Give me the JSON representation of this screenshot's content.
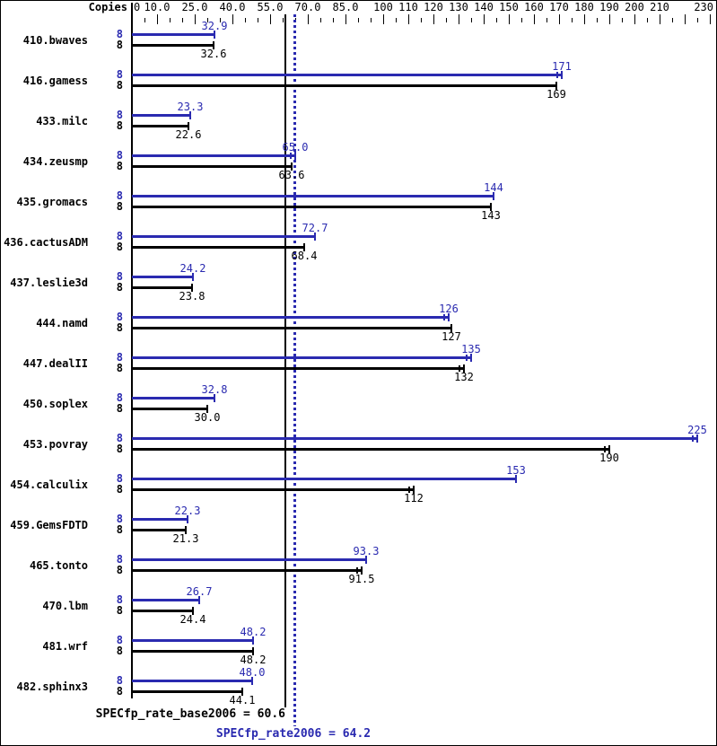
{
  "header": {
    "copies_label": "Copies"
  },
  "colors": {
    "peak_blue": "#2a2ab0",
    "base_black": "#000000",
    "background": "#ffffff"
  },
  "chart_data": {
    "type": "bar",
    "orientation": "horizontal",
    "legend": "none",
    "grid": "off",
    "axis": {
      "min": 0,
      "max": 230,
      "minor_tick_step": 5,
      "unlabeled_major_ticks": [
        220
      ],
      "labeled_ticks": [
        {
          "value": 0,
          "label": "0"
        },
        {
          "value": 10,
          "label": "10.0"
        },
        {
          "value": 25,
          "label": "25.0"
        },
        {
          "value": 40,
          "label": "40.0"
        },
        {
          "value": 55,
          "label": "55.0"
        },
        {
          "value": 70,
          "label": "70.0"
        },
        {
          "value": 85,
          "label": "85.0"
        },
        {
          "value": 100,
          "label": "100"
        },
        {
          "value": 110,
          "label": "110"
        },
        {
          "value": 120,
          "label": "120"
        },
        {
          "value": 130,
          "label": "130"
        },
        {
          "value": 140,
          "label": "140"
        },
        {
          "value": 150,
          "label": "150"
        },
        {
          "value": 160,
          "label": "160"
        },
        {
          "value": 170,
          "label": "170"
        },
        {
          "value": 180,
          "label": "180"
        },
        {
          "value": 190,
          "label": "190"
        },
        {
          "value": 200,
          "label": "200"
        },
        {
          "value": 210,
          "label": "210"
        },
        {
          "value": 230,
          "label": "230"
        }
      ]
    },
    "series_names": [
      "peak",
      "base"
    ],
    "benchmarks": [
      {
        "name": "410.bwaves",
        "copies_peak": "8",
        "copies_base": "8",
        "peak": 32.9,
        "peak_label": "32.9",
        "peak_err": false,
        "base": 32.6,
        "base_label": "32.6",
        "base_err": false
      },
      {
        "name": "416.gamess",
        "copies_peak": "8",
        "copies_base": "8",
        "peak": 171,
        "peak_label": "171",
        "peak_err": true,
        "base": 169,
        "base_label": "169",
        "base_err": false
      },
      {
        "name": "433.milc",
        "copies_peak": "8",
        "copies_base": "8",
        "peak": 23.3,
        "peak_label": "23.3",
        "peak_err": false,
        "base": 22.6,
        "base_label": "22.6",
        "base_err": false
      },
      {
        "name": "434.zeusmp",
        "copies_peak": "8",
        "copies_base": "8",
        "peak": 65.0,
        "peak_label": "65.0",
        "peak_err": true,
        "base": 63.6,
        "base_label": "63.6",
        "base_err": false
      },
      {
        "name": "435.gromacs",
        "copies_peak": "8",
        "copies_base": "8",
        "peak": 144,
        "peak_label": "144",
        "peak_err": false,
        "base": 143,
        "base_label": "143",
        "base_err": false
      },
      {
        "name": "436.cactusADM",
        "copies_peak": "8",
        "copies_base": "8",
        "peak": 72.7,
        "peak_label": "72.7",
        "peak_err": false,
        "base": 68.4,
        "base_label": "68.4",
        "base_err": false
      },
      {
        "name": "437.leslie3d",
        "copies_peak": "8",
        "copies_base": "8",
        "peak": 24.2,
        "peak_label": "24.2",
        "peak_err": false,
        "base": 23.8,
        "base_label": "23.8",
        "base_err": false
      },
      {
        "name": "444.namd",
        "copies_peak": "8",
        "copies_base": "8",
        "peak": 126,
        "peak_label": "126",
        "peak_err": true,
        "base": 127,
        "base_label": "127",
        "base_err": false
      },
      {
        "name": "447.dealII",
        "copies_peak": "8",
        "copies_base": "8",
        "peak": 135,
        "peak_label": "135",
        "peak_err": true,
        "base": 132,
        "base_label": "132",
        "base_err": true
      },
      {
        "name": "450.soplex",
        "copies_peak": "8",
        "copies_base": "8",
        "peak": 32.8,
        "peak_label": "32.8",
        "peak_err": false,
        "base": 30.0,
        "base_label": "30.0",
        "base_err": false
      },
      {
        "name": "453.povray",
        "copies_peak": "8",
        "copies_base": "8",
        "peak": 225,
        "peak_label": "225",
        "peak_err": true,
        "base": 190,
        "base_label": "190",
        "base_err": true
      },
      {
        "name": "454.calculix",
        "copies_peak": "8",
        "copies_base": "8",
        "peak": 153,
        "peak_label": "153",
        "peak_err": false,
        "base": 112,
        "base_label": "112",
        "base_err": true
      },
      {
        "name": "459.GemsFDTD",
        "copies_peak": "8",
        "copies_base": "8",
        "peak": 22.3,
        "peak_label": "22.3",
        "peak_err": false,
        "base": 21.3,
        "base_label": "21.3",
        "base_err": false
      },
      {
        "name": "465.tonto",
        "copies_peak": "8",
        "copies_base": "8",
        "peak": 93.3,
        "peak_label": "93.3",
        "peak_err": false,
        "base": 91.5,
        "base_label": "91.5",
        "base_err": true
      },
      {
        "name": "470.lbm",
        "copies_peak": "8",
        "copies_base": "8",
        "peak": 26.7,
        "peak_label": "26.7",
        "peak_err": false,
        "base": 24.4,
        "base_label": "24.4",
        "base_err": false
      },
      {
        "name": "481.wrf",
        "copies_peak": "8",
        "copies_base": "8",
        "peak": 48.2,
        "peak_label": "48.2",
        "peak_err": false,
        "base": 48.2,
        "base_label": "48.2",
        "base_err": false
      },
      {
        "name": "482.sphinx3",
        "copies_peak": "8",
        "copies_base": "8",
        "peak": 48.0,
        "peak_label": "48.0",
        "peak_err": false,
        "base": 44.1,
        "base_label": "44.1",
        "base_err": false
      }
    ],
    "summary": {
      "base_value": 60.6,
      "base_text": "SPECfp_rate_base2006 = 60.6",
      "peak_value": 64.2,
      "peak_text": "SPECfp_rate2006 = 64.2"
    }
  }
}
